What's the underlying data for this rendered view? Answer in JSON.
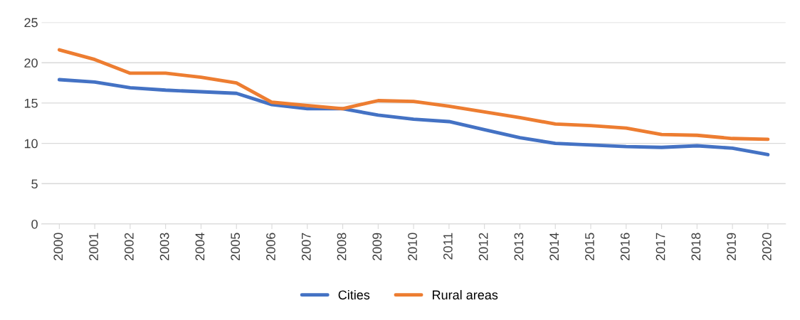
{
  "chart_data": {
    "type": "line",
    "categories": [
      "2000",
      "2001",
      "2002",
      "2003",
      "2004",
      "2005",
      "2006",
      "2007",
      "2008",
      "2009",
      "2010",
      "2011",
      "2012",
      "2013",
      "2014",
      "2015",
      "2016",
      "2017",
      "2018",
      "2019",
      "2020"
    ],
    "series": [
      {
        "name": "Cities",
        "color": "#4472c4",
        "values": [
          17.9,
          17.6,
          16.9,
          16.6,
          16.4,
          16.2,
          14.8,
          14.3,
          14.3,
          13.5,
          13.0,
          12.7,
          11.7,
          10.7,
          10.0,
          9.8,
          9.6,
          9.5,
          9.7,
          9.4,
          8.6
        ]
      },
      {
        "name": "Rural areas",
        "color": "#ed7d31",
        "values": [
          21.6,
          20.4,
          18.7,
          18.7,
          18.2,
          17.5,
          15.1,
          14.7,
          14.3,
          15.3,
          15.2,
          14.6,
          13.9,
          13.2,
          12.4,
          12.2,
          11.9,
          11.1,
          11.0,
          10.6,
          10.5
        ]
      }
    ],
    "ylim": [
      0,
      25
    ],
    "yticks": [
      0,
      5,
      10,
      15,
      20,
      25
    ],
    "grid": "y",
    "legend": "bottom",
    "marker": "none",
    "line_style": "solid"
  }
}
